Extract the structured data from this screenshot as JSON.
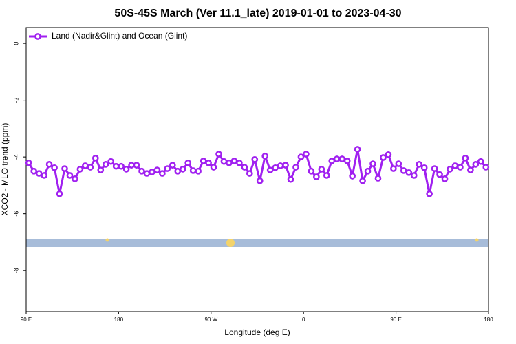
{
  "chart_data": {
    "type": "line",
    "title": "50S-45S March (Ver 11.1_late)   2019-01-01 to 2023-04-30",
    "x_label": "Longitude (deg E)",
    "y_label": "XCO2 - MLO trend (ppm)",
    "x": [
      92.5,
      97.5,
      102.5,
      107.5,
      112.5,
      117.5,
      122.5,
      127.5,
      132.5,
      137.5,
      142.5,
      147.5,
      152.5,
      157.5,
      162.5,
      167.5,
      172.5,
      177.5,
      182.5,
      187.5,
      192.5,
      197.5,
      202.5,
      207.5,
      212.5,
      217.5,
      222.5,
      227.5,
      232.5,
      237.5,
      242.5,
      247.5,
      252.5,
      257.5,
      262.5,
      267.5,
      272.5,
      277.5,
      282.5,
      287.5,
      292.5,
      297.5,
      302.5,
      307.5,
      312.5,
      317.5,
      322.5,
      327.5,
      332.5,
      337.5,
      342.5,
      347.5,
      352.5,
      357.5,
      362.5,
      367.5,
      372.5,
      377.5,
      382.5,
      387.5,
      392.5,
      397.5,
      402.5,
      407.5,
      412.5,
      417.5,
      422.5,
      427.5,
      432.5,
      437.5,
      442.5,
      447.5,
      452.5,
      457.5,
      462.5,
      467.5,
      472.5,
      477.5,
      482.5,
      487.5,
      492.5,
      497.5,
      502.5,
      507.5,
      512.5,
      517.5,
      522.5,
      527.5,
      532.5,
      537.5
    ],
    "series": [
      {
        "name": "Land (Nadir&Glint) and Ocean (Glint)",
        "color": "#a020f0",
        "values": [
          -4.21,
          -4.5,
          -4.58,
          -4.65,
          -4.26,
          -4.38,
          -5.3,
          -4.41,
          -4.65,
          -4.77,
          -4.43,
          -4.31,
          -4.36,
          -4.04,
          -4.46,
          -4.26,
          -4.16,
          -4.33,
          -4.33,
          -4.43,
          -4.29,
          -4.29,
          -4.5,
          -4.58,
          -4.53,
          -4.46,
          -4.58,
          -4.41,
          -4.29,
          -4.5,
          -4.43,
          -4.21,
          -4.48,
          -4.5,
          -4.14,
          -4.21,
          -4.36,
          -3.9,
          -4.16,
          -4.21,
          -4.14,
          -4.21,
          -4.36,
          -4.58,
          -4.09,
          -4.84,
          -3.97,
          -4.46,
          -4.38,
          -4.31,
          -4.29,
          -4.79,
          -4.36,
          -4.0,
          -3.9,
          -4.5,
          -4.7,
          -4.43,
          -4.65,
          -4.14,
          -4.07,
          -4.07,
          -4.14,
          -4.67,
          -3.73,
          -4.84,
          -4.5,
          -4.24,
          -4.75,
          -4.02,
          -3.92,
          -4.41,
          -4.24,
          -4.48,
          -4.55,
          -4.65,
          -4.26,
          -4.38,
          -5.3,
          -4.41,
          -4.62,
          -4.77,
          -4.43,
          -4.31,
          -4.36,
          -4.04,
          -4.46,
          -4.26,
          -4.16,
          -4.36
        ]
      }
    ],
    "xlim": [
      90,
      540
    ],
    "xticks": [
      {
        "value": 90,
        "label": "90 E"
      },
      180,
      {
        "value": 270,
        "label": "90 W"
      },
      {
        "value": 360,
        "label": "0"
      },
      {
        "value": 450,
        "label": "90 E"
      },
      {
        "value": 540,
        "label": "180"
      }
    ],
    "ylim": [
      -9.45,
      0.56
    ],
    "yticks": [
      0,
      -2,
      -4,
      -6,
      -8
    ],
    "legend": "upper left"
  }
}
